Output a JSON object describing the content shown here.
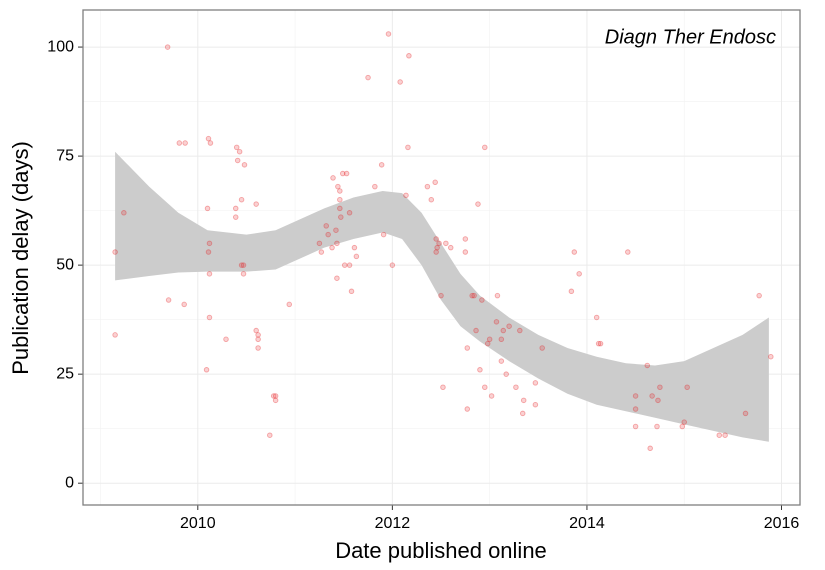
{
  "chart_data": {
    "type": "scatter",
    "x_label": "Date published online",
    "y_label": "Publication delay (days)",
    "annotation": "Diagn Ther Endosc",
    "color": "#e41a1c",
    "band_color": "#cccccc",
    "grid": true,
    "xlim": [
      2008.82,
      2016.19
    ],
    "xticks": [
      2010,
      2012,
      2014,
      2016
    ],
    "ylim": [
      -5,
      108.5
    ],
    "yticks": [
      0,
      25,
      50,
      75,
      100
    ],
    "x": [
      2009.15,
      2009.15,
      2009.24,
      2009.69,
      2009.7,
      2009.81,
      2009.87,
      2009.86,
      2010.11,
      2010.13,
      2010.1,
      2010.11,
      2010.12,
      2010.12,
      2010.12,
      2010.09,
      2010.29,
      2010.4,
      2010.43,
      2010.41,
      2010.39,
      2010.39,
      2010.45,
      2010.48,
      2010.45,
      2010.47,
      2010.47,
      2010.6,
      2010.6,
      2010.62,
      2010.62,
      2010.62,
      2010.78,
      2010.8,
      2010.8,
      2010.74,
      2010.94,
      2011.25,
      2011.27,
      2011.32,
      2011.34,
      2011.38,
      2011.39,
      2011.42,
      2011.43,
      2011.43,
      2011.44,
      2011.46,
      2011.46,
      2011.46,
      2011.47,
      2011.49,
      2011.53,
      2011.51,
      2011.56,
      2011.56,
      2011.61,
      2011.58,
      2011.63,
      2011.75,
      2011.82,
      2011.89,
      2011.91,
      2011.96,
      2012.0,
      2012.08,
      2012.17,
      2012.16,
      2012.14,
      2012.36,
      2012.4,
      2012.44,
      2012.45,
      2012.46,
      2012.45,
      2012.48,
      2012.5,
      2012.52,
      2012.55,
      2012.6,
      2012.75,
      2012.75,
      2012.82,
      2012.84,
      2012.77,
      2012.77,
      2012.88,
      2012.86,
      2012.9,
      2012.92,
      2012.95,
      2012.95,
      2012.98,
      2013.0,
      2013.02,
      2013.08,
      2013.07,
      2013.14,
      2013.12,
      2013.12,
      2013.17,
      2013.2,
      2013.27,
      2013.31,
      2013.34,
      2013.35,
      2013.47,
      2013.47,
      2013.54,
      2013.84,
      2013.87,
      2013.92,
      2014.1,
      2014.12,
      2014.14,
      2014.42,
      2014.5,
      2014.5,
      2014.5,
      2014.62,
      2014.65,
      2014.67,
      2014.72,
      2014.73,
      2014.75,
      2014.98,
      2015.0,
      2015.03,
      2015.36,
      2015.42,
      2015.63,
      2015.77,
      2015.89
    ],
    "values": [
      53,
      34,
      62,
      100,
      42,
      78,
      78,
      41,
      79,
      78,
      63,
      53,
      55,
      48,
      38,
      26,
      33,
      77,
      76,
      74,
      63,
      61,
      65,
      73,
      50,
      50,
      48,
      64,
      35,
      34,
      31,
      33,
      20,
      19,
      20,
      11,
      41,
      55,
      53,
      59,
      57,
      54,
      70,
      58,
      55,
      47,
      68,
      67,
      65,
      63,
      61,
      71,
      71,
      50,
      50,
      62,
      54,
      44,
      52,
      93,
      68,
      73,
      57,
      103,
      50,
      92,
      98,
      77,
      66,
      68,
      65,
      69,
      56,
      54,
      53,
      55,
      43,
      22,
      55,
      54,
      56,
      53,
      43,
      43,
      31,
      17,
      64,
      35,
      26,
      42,
      77,
      22,
      32,
      33,
      20,
      43,
      37,
      35,
      28,
      33,
      25,
      36,
      22,
      35,
      16,
      19,
      18,
      23,
      31,
      44,
      53,
      48,
      38,
      32,
      32,
      53,
      20,
      17,
      13,
      27,
      8,
      20,
      13,
      19,
      22,
      13,
      14,
      22,
      11,
      11,
      16,
      43,
      29
    ],
    "band": {
      "x": [
        2009.15,
        2009.5,
        2009.8,
        2010.1,
        2010.5,
        2010.8,
        2011.0,
        2011.3,
        2011.6,
        2011.9,
        2012.1,
        2012.3,
        2012.5,
        2012.7,
        2012.9,
        2013.2,
        2013.5,
        2013.8,
        2014.1,
        2014.4,
        2014.7,
        2015.0,
        2015.3,
        2015.6,
        2015.87
      ],
      "upper": [
        76,
        68,
        62,
        58,
        57,
        58,
        60,
        63,
        65.5,
        67,
        66.5,
        62,
        55,
        48,
        43,
        38,
        34,
        31,
        29,
        27.5,
        27,
        28,
        31,
        34,
        38
      ],
      "lower": [
        46.5,
        47.5,
        48.3,
        48.5,
        48.5,
        49,
        51,
        54,
        56,
        57.5,
        56,
        50,
        42,
        36,
        32.5,
        28,
        24,
        20.5,
        18,
        16.5,
        15,
        13.5,
        12,
        10.5,
        9.5
      ]
    }
  }
}
